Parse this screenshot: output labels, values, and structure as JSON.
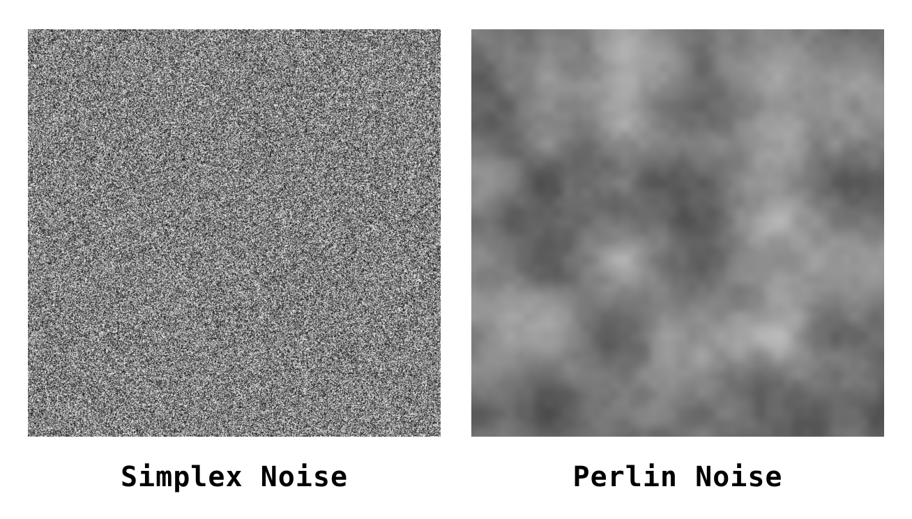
{
  "panels": [
    {
      "caption": "Simplex Noise",
      "texture": "fine-grain-noise",
      "tone": "grayscale"
    },
    {
      "caption": "Perlin Noise",
      "texture": "smooth-cloud-noise",
      "tone": "grayscale"
    }
  ],
  "colors": {
    "background": "#ffffff",
    "caption_text": "#000000"
  }
}
